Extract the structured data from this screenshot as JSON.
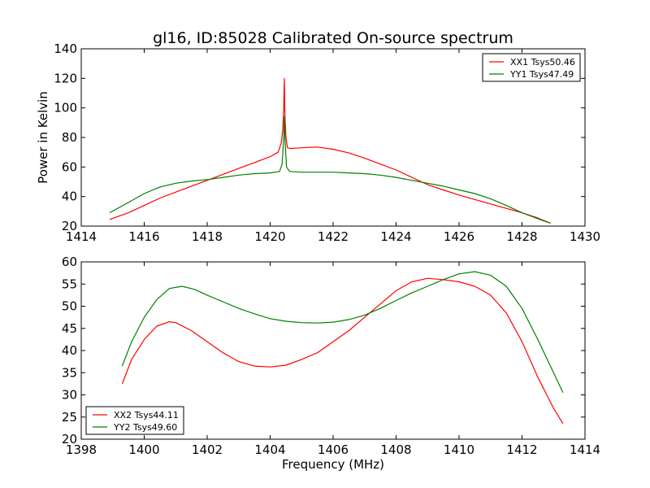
{
  "chart_data": [
    {
      "type": "line",
      "title": "gl16, ID:85028 Calibrated On-source spectrum",
      "xlabel": "",
      "ylabel": "Power in Kelvin",
      "xlim": [
        1414,
        1430
      ],
      "ylim": [
        20,
        140
      ],
      "xticks": [
        "1414",
        "1416",
        "1418",
        "1420",
        "1422",
        "1424",
        "1426",
        "1428",
        "1430"
      ],
      "yticks": [
        "20",
        "40",
        "60",
        "80",
        "100",
        "120",
        "140"
      ],
      "grid": false,
      "legend": "top-right",
      "series": [
        {
          "name": "XX1 Tsys50.46",
          "color": "#ff0000",
          "x": [
            1414.9,
            1415.5,
            1416.0,
            1416.5,
            1417.0,
            1417.5,
            1418.0,
            1418.5,
            1419.0,
            1419.5,
            1420.0,
            1420.25,
            1420.35,
            1420.4,
            1420.43,
            1420.45,
            1420.47,
            1420.5,
            1420.55,
            1420.65,
            1421.0,
            1421.5,
            1422.0,
            1422.5,
            1423.0,
            1423.5,
            1424.0,
            1424.5,
            1425.0,
            1425.5,
            1426.0,
            1426.5,
            1427.0,
            1427.5,
            1428.0,
            1428.5,
            1428.9
          ],
          "y": [
            24.5,
            29,
            34,
            39,
            43,
            47,
            51,
            55,
            59,
            63,
            67,
            70,
            76,
            85,
            100,
            120,
            95,
            80,
            73,
            72.5,
            73,
            73.5,
            72,
            69.5,
            66,
            62,
            58,
            53,
            48,
            44.5,
            41,
            38,
            35,
            32,
            29,
            25.5,
            22
          ]
        },
        {
          "name": "YY1 Tsys47.49",
          "color": "#008000",
          "x": [
            1414.9,
            1415.5,
            1416.0,
            1416.5,
            1417.0,
            1417.5,
            1418.0,
            1418.5,
            1419.0,
            1419.5,
            1420.0,
            1420.3,
            1420.38,
            1420.43,
            1420.45,
            1420.47,
            1420.52,
            1420.62,
            1421.0,
            1421.5,
            1422.0,
            1422.5,
            1423.0,
            1423.5,
            1424.0,
            1424.5,
            1425.0,
            1425.5,
            1426.0,
            1426.5,
            1427.0,
            1427.5,
            1428.0,
            1428.5,
            1428.9
          ],
          "y": [
            29,
            36,
            42,
            46.5,
            49,
            50.5,
            51.5,
            53,
            54.5,
            55.5,
            56,
            57,
            62,
            80,
            94,
            80,
            60,
            57,
            56.5,
            56.5,
            56.5,
            56,
            55.5,
            54.5,
            53,
            51,
            49,
            47,
            44.5,
            42,
            38.5,
            34,
            29,
            25,
            22
          ]
        }
      ]
    },
    {
      "type": "line",
      "title": "",
      "xlabel": "Frequency (MHz)",
      "ylabel": "",
      "xlim": [
        1398,
        1414
      ],
      "ylim": [
        20,
        60
      ],
      "xticks": [
        "1398",
        "1400",
        "1402",
        "1404",
        "1406",
        "1408",
        "1410",
        "1412",
        "1414"
      ],
      "yticks": [
        "20",
        "25",
        "30",
        "35",
        "40",
        "45",
        "50",
        "55",
        "60"
      ],
      "grid": false,
      "legend": "bottom-left",
      "series": [
        {
          "name": "XX2 Tsys44.11",
          "color": "#ff0000",
          "x": [
            1399.3,
            1399.6,
            1400.0,
            1400.4,
            1400.8,
            1401.0,
            1401.5,
            1402.0,
            1402.5,
            1403.0,
            1403.5,
            1404.0,
            1404.5,
            1405.0,
            1405.5,
            1406.0,
            1406.5,
            1407.0,
            1407.5,
            1408.0,
            1408.5,
            1409.0,
            1409.5,
            1410.0,
            1410.5,
            1411.0,
            1411.5,
            1412.0,
            1412.5,
            1413.0,
            1413.3
          ],
          "y": [
            32.5,
            38,
            42.5,
            45.5,
            46.5,
            46.3,
            44.5,
            42,
            39.5,
            37.5,
            36.5,
            36.3,
            36.7,
            38,
            39.5,
            42,
            44.5,
            47.5,
            50.5,
            53.5,
            55.5,
            56.3,
            56,
            55.5,
            54.5,
            52.5,
            48.5,
            42,
            34,
            27,
            23.5
          ]
        },
        {
          "name": "YY2 Tsys49.60",
          "color": "#008000",
          "x": [
            1399.3,
            1399.6,
            1400.0,
            1400.4,
            1400.8,
            1401.2,
            1401.6,
            1402.0,
            1402.5,
            1403.0,
            1403.5,
            1404.0,
            1404.5,
            1405.0,
            1405.5,
            1406.0,
            1406.5,
            1407.0,
            1407.5,
            1408.0,
            1408.5,
            1409.0,
            1409.5,
            1410.0,
            1410.5,
            1411.0,
            1411.5,
            1412.0,
            1412.5,
            1413.0,
            1413.3
          ],
          "y": [
            36.5,
            42,
            47.5,
            51.5,
            54,
            54.5,
            53.8,
            52.5,
            51,
            49.5,
            48.3,
            47.2,
            46.6,
            46.3,
            46.2,
            46.4,
            47,
            48,
            49.5,
            51.3,
            53,
            54.5,
            56,
            57.3,
            57.8,
            57,
            54.5,
            49.5,
            42.5,
            35,
            30.5
          ]
        }
      ]
    }
  ]
}
